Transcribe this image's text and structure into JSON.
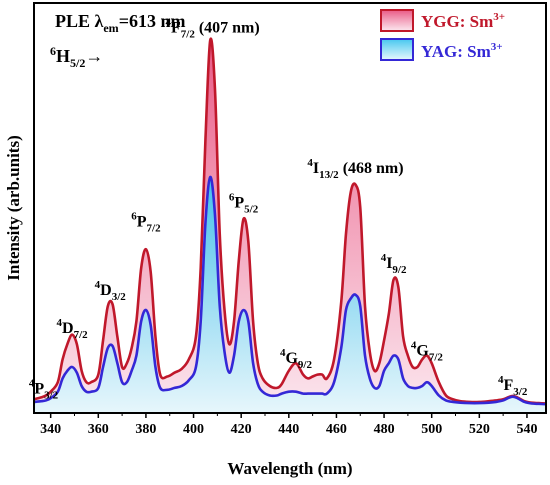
{
  "chart_data": {
    "type": "area",
    "xlabel": "Wavelength (nm)",
    "ylabel": "Intensity (arb.units)",
    "xlim": [
      333,
      548
    ],
    "ylim": [
      0,
      1.0
    ],
    "x_ticks": [
      340,
      360,
      380,
      400,
      420,
      440,
      460,
      480,
      500,
      520,
      540
    ],
    "grid": false,
    "legend": {
      "position": "top-right",
      "entries": [
        {
          "prefix": "YGG: Sm",
          "sup": "3+"
        },
        {
          "prefix": "YAG: Sm",
          "sup": "3+"
        }
      ]
    },
    "header": {
      "ple_prefix": "PLE λ",
      "ple_sub": "em",
      "ple_suffix": "=613 nm",
      "ground_base": "H",
      "ground_pre_sup": "6",
      "ground_sub": "5/2",
      "ground_arrow": "→"
    },
    "annotations": [
      {
        "pre": "4",
        "base": "P",
        "sub": "3/2",
        "post": "",
        "x": 337,
        "y": 0.03
      },
      {
        "pre": "4",
        "base": "D",
        "sub": "7/2",
        "post": "",
        "x": 349,
        "y": 0.19
      },
      {
        "pre": "4",
        "base": "D",
        "sub": "3/2",
        "post": "",
        "x": 365,
        "y": 0.29
      },
      {
        "pre": "6",
        "base": "P",
        "sub": "7/2",
        "post": "",
        "x": 380,
        "y": 0.47
      },
      {
        "pre": "4",
        "base": "F",
        "sub": "7/2",
        "post": " (407 nm)",
        "x": 408,
        "y": 0.98
      },
      {
        "pre": "6",
        "base": "P",
        "sub": "5/2",
        "post": "",
        "x": 421,
        "y": 0.52
      },
      {
        "pre": "4",
        "base": "G",
        "sub": "9/2",
        "post": "",
        "x": 443,
        "y": 0.11
      },
      {
        "pre": "4",
        "base": "I",
        "sub": "13/2",
        "post": " (468 nm)",
        "x": 468,
        "y": 0.61
      },
      {
        "pre": "4",
        "base": "I",
        "sub": "9/2",
        "post": "",
        "x": 484,
        "y": 0.36
      },
      {
        "pre": "4",
        "base": "G",
        "sub": "7/2",
        "post": "",
        "x": 498,
        "y": 0.13
      },
      {
        "pre": "4",
        "base": "F",
        "sub": "3/2",
        "post": "",
        "x": 534,
        "y": 0.04
      }
    ],
    "series": [
      {
        "name": "YGG: Sm3+",
        "line_color": "#c0182b",
        "fill_color": "#f08aa6",
        "x": [
          333,
          336,
          338,
          340,
          343,
          345,
          347,
          349,
          351,
          353,
          355,
          357,
          360,
          362,
          364,
          366,
          368,
          370,
          372,
          374,
          376,
          378,
          380,
          382,
          384,
          386,
          389,
          392,
          395,
          398,
          401,
          403,
          405,
          407,
          409,
          411,
          413,
          415,
          417,
          419,
          421,
          423,
          425,
          427,
          429,
          432,
          435,
          437,
          440,
          443,
          446,
          448,
          450,
          452,
          454,
          456,
          459,
          462,
          464,
          466,
          468,
          470,
          472,
          474,
          476,
          478,
          480,
          482,
          484,
          486,
          488,
          490,
          492,
          494,
          496,
          498,
          500,
          503,
          506,
          509,
          512,
          516,
          520,
          524,
          527,
          530,
          532,
          534,
          536,
          539,
          542,
          545,
          548
        ],
        "y": [
          0.015,
          0.02,
          0.025,
          0.035,
          0.06,
          0.12,
          0.16,
          0.185,
          0.16,
          0.09,
          0.06,
          0.06,
          0.08,
          0.17,
          0.26,
          0.265,
          0.18,
          0.1,
          0.11,
          0.15,
          0.22,
          0.36,
          0.41,
          0.35,
          0.18,
          0.08,
          0.075,
          0.085,
          0.095,
          0.12,
          0.18,
          0.36,
          0.7,
          0.96,
          0.83,
          0.45,
          0.25,
          0.16,
          0.22,
          0.38,
          0.49,
          0.43,
          0.22,
          0.11,
          0.07,
          0.05,
          0.045,
          0.055,
          0.09,
          0.11,
          0.08,
          0.07,
          0.075,
          0.08,
          0.08,
          0.07,
          0.12,
          0.27,
          0.45,
          0.56,
          0.58,
          0.52,
          0.26,
          0.14,
          0.09,
          0.11,
          0.17,
          0.24,
          0.33,
          0.31,
          0.18,
          0.13,
          0.1,
          0.1,
          0.12,
          0.13,
          0.11,
          0.06,
          0.025,
          0.015,
          0.01,
          0.008,
          0.008,
          0.01,
          0.012,
          0.015,
          0.02,
          0.024,
          0.02,
          0.01,
          0.006,
          0.005,
          0.004
        ]
      },
      {
        "name": "YAG: Sm3+",
        "line_color": "#3428d6",
        "fill_color": "#8fe0f4",
        "x": [
          333,
          336,
          338,
          340,
          343,
          345,
          347,
          349,
          351,
          353,
          355,
          357,
          360,
          362,
          364,
          366,
          368,
          370,
          372,
          374,
          376,
          378,
          380,
          382,
          384,
          386,
          389,
          392,
          395,
          398,
          401,
          403,
          405,
          407,
          409,
          411,
          413,
          415,
          417,
          419,
          421,
          423,
          425,
          427,
          429,
          432,
          435,
          437,
          440,
          443,
          446,
          448,
          450,
          452,
          454,
          456,
          459,
          462,
          464,
          466,
          468,
          470,
          472,
          474,
          476,
          478,
          480,
          482,
          484,
          486,
          488,
          490,
          492,
          494,
          496,
          498,
          500,
          503,
          506,
          509,
          512,
          516,
          520,
          524,
          527,
          530,
          532,
          534,
          536,
          539,
          542,
          545,
          548
        ],
        "y": [
          0.008,
          0.01,
          0.012,
          0.018,
          0.035,
          0.07,
          0.09,
          0.1,
          0.085,
          0.05,
          0.035,
          0.035,
          0.045,
          0.1,
          0.15,
          0.155,
          0.11,
          0.06,
          0.06,
          0.09,
          0.13,
          0.22,
          0.25,
          0.21,
          0.1,
          0.045,
          0.04,
          0.045,
          0.05,
          0.065,
          0.1,
          0.22,
          0.48,
          0.6,
          0.5,
          0.26,
          0.14,
          0.085,
          0.13,
          0.22,
          0.25,
          0.22,
          0.11,
          0.055,
          0.035,
          0.025,
          0.025,
          0.03,
          0.035,
          0.035,
          0.03,
          0.03,
          0.03,
          0.03,
          0.03,
          0.03,
          0.06,
          0.15,
          0.25,
          0.28,
          0.29,
          0.26,
          0.13,
          0.07,
          0.045,
          0.05,
          0.09,
          0.11,
          0.13,
          0.12,
          0.07,
          0.05,
          0.045,
          0.045,
          0.05,
          0.06,
          0.05,
          0.025,
          0.012,
          0.008,
          0.006,
          0.005,
          0.005,
          0.006,
          0.008,
          0.012,
          0.018,
          0.022,
          0.018,
          0.008,
          0.004,
          0.003,
          0.002
        ]
      }
    ]
  }
}
